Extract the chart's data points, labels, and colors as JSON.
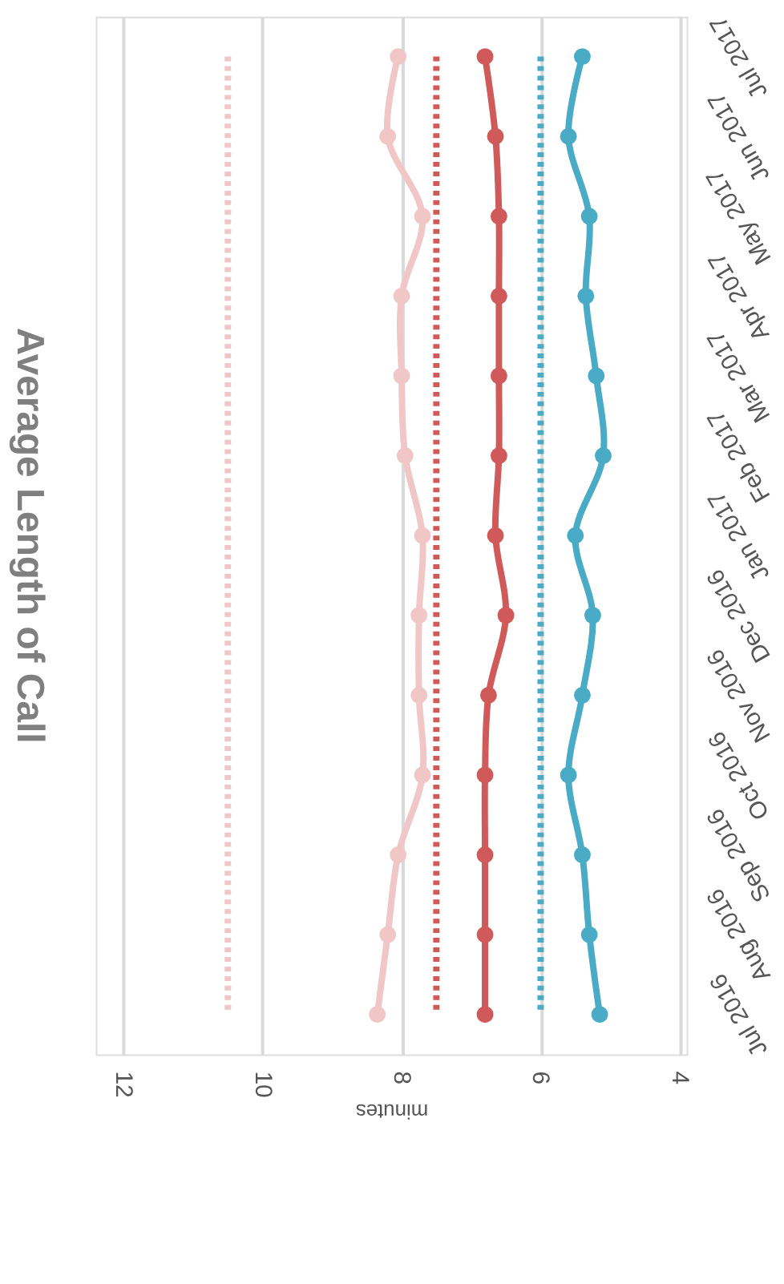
{
  "chart_data": {
    "type": "line",
    "title": "Average Length of Call",
    "xlabel": "minutes",
    "orientation": "horizontal",
    "categories": [
      "Jul 2017",
      "Jun 2017",
      "May 2017",
      "Apr 2017",
      "Mar 2017",
      "Feb 2017",
      "Jan 2017",
      "Dec 2016",
      "Nov 2016",
      "Oct 2016",
      "Sep 2016",
      "Aug 2016",
      "Jul 2016"
    ],
    "series": [
      {
        "color": "#f0c6c6",
        "values": [
          8.05,
          8.2,
          7.7,
          8.0,
          8.0,
          7.95,
          7.7,
          7.75,
          7.75,
          7.7,
          8.05,
          8.2,
          8.35
        ]
      },
      {
        "color": "#d05a5a",
        "values": [
          6.8,
          6.65,
          6.6,
          6.6,
          6.6,
          6.6,
          6.65,
          6.5,
          6.75,
          6.8,
          6.8,
          6.8,
          6.8
        ]
      },
      {
        "color": "#4aabc6",
        "values": [
          5.4,
          5.6,
          5.3,
          5.35,
          5.2,
          5.1,
          5.5,
          5.25,
          5.4,
          5.6,
          5.4,
          5.3,
          5.15
        ]
      }
    ],
    "ref_lines": [
      {
        "axis": "x",
        "value": 10.5,
        "color": "#f0c6c6",
        "line_style": "dotted"
      },
      {
        "axis": "x",
        "value": 7.5,
        "color": "#d05a5a",
        "line_style": "dotted"
      },
      {
        "axis": "x",
        "value": 6.0,
        "color": "#4aabc6",
        "line_style": "dotted"
      }
    ],
    "xlim": [
      12.4,
      3.9
    ],
    "xticks": [
      12,
      10,
      8,
      6,
      4
    ],
    "grid": "x",
    "marker": "circle",
    "line_style": "solid"
  }
}
